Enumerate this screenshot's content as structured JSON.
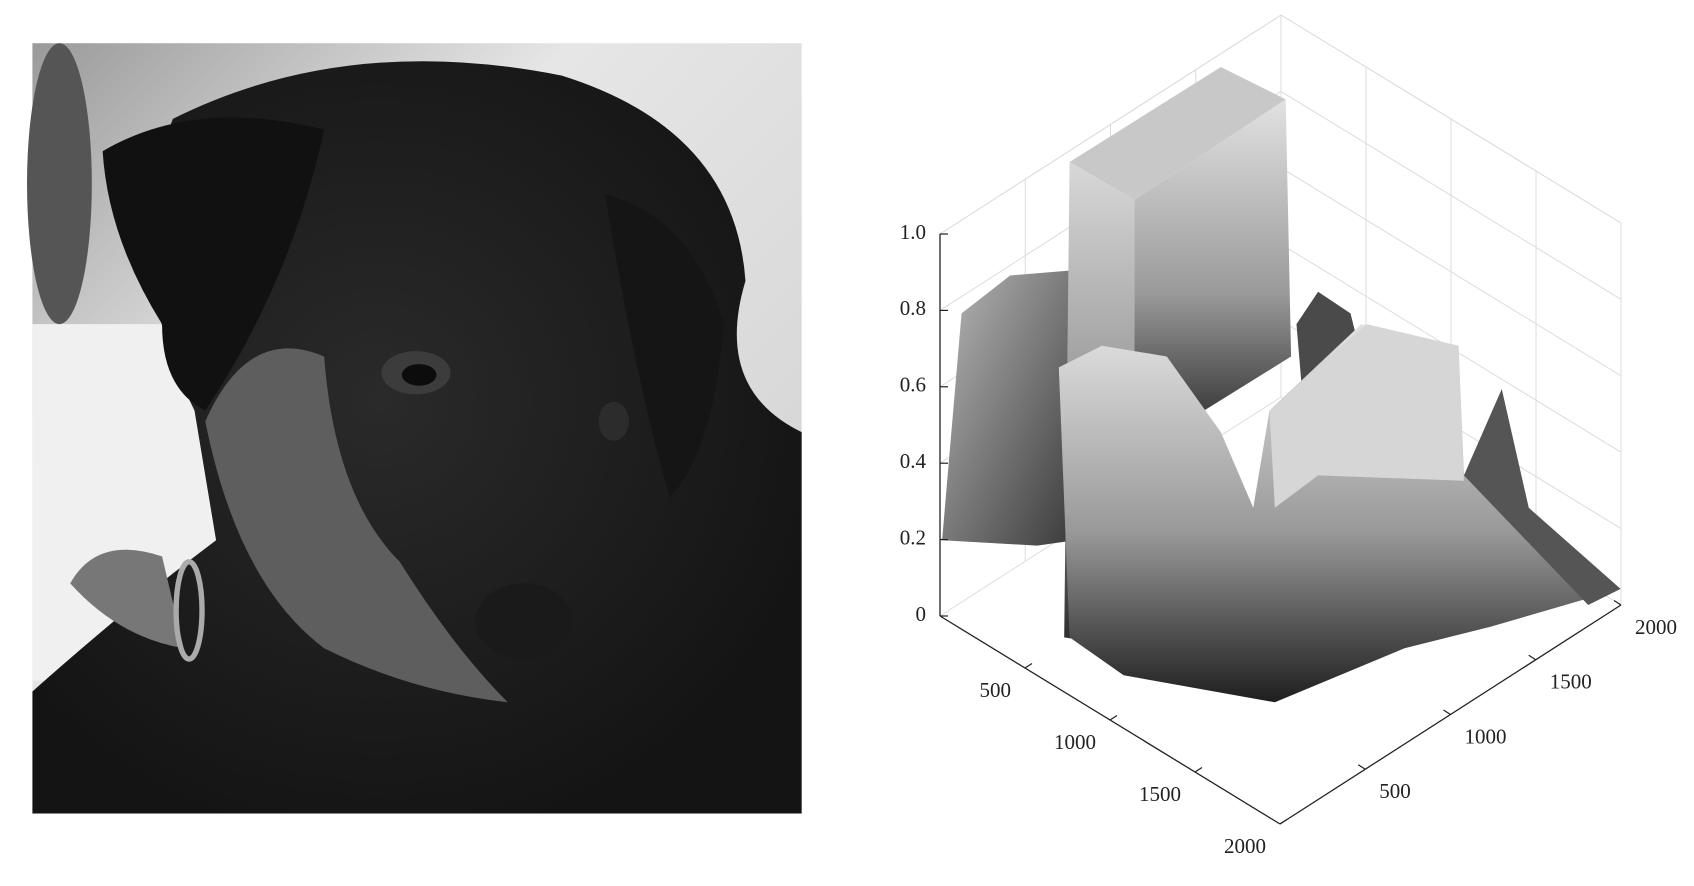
{
  "chart_data": {
    "type": "surface3d",
    "xlim": [
      0,
      2000
    ],
    "ylim": [
      0,
      2000
    ],
    "zlim": [
      0,
      1
    ],
    "xticks": [
      500,
      1000,
      1500,
      2000
    ],
    "yticks": [
      500,
      1000,
      1500,
      2000
    ],
    "zticks": [
      0,
      0.2,
      0.4,
      0.6,
      0.8,
      {
        "value": 1,
        "label": "1.0"
      }
    ]
  }
}
